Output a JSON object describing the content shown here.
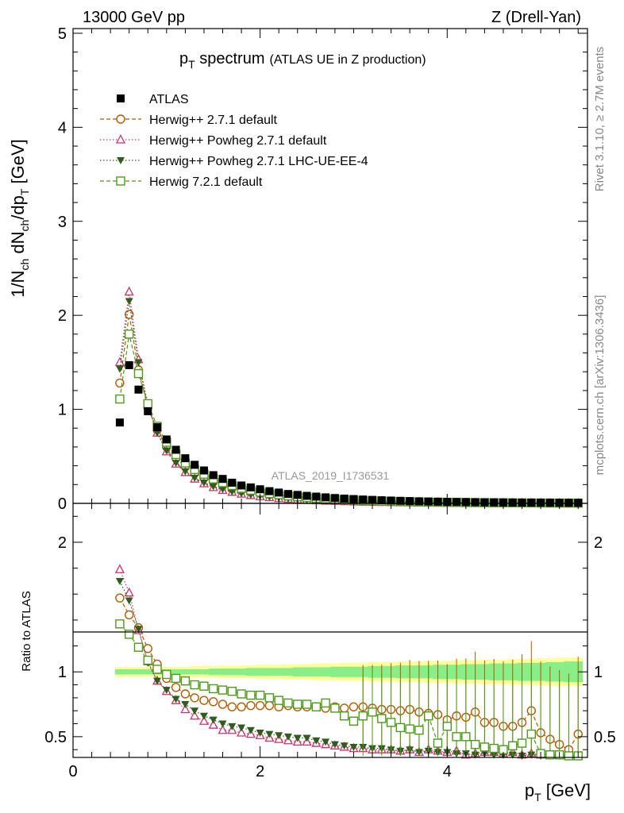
{
  "header": {
    "left": "13000 GeV pp",
    "right": "Z (Drell-Yan)"
  },
  "title": {
    "main": "p",
    "main_sub": "T",
    "main_rest": " spectrum",
    "detail": "(ATLAS UE in Z production)"
  },
  "side_labels": {
    "rivet": "Rivet 3.1.10, ≥ 2.7M events",
    "mcplots": "mcplots.cern.ch [arXiv:1306.3436]"
  },
  "analysis_id": "ATLAS_2019_I1736531",
  "colors": {
    "atlas": "#000000",
    "herwig_pp_default": "#b35900",
    "herwig_pp_powheg": "#cc3366",
    "herwig_pp_powheg_lhc": "#2e5d1e",
    "herwig7_default": "#4c9a1a",
    "band_outer": "#ffff99",
    "band_inner": "#88ee88"
  },
  "chart_data": [
    {
      "type": "scatter",
      "panel": "main",
      "ylabel": "1/N_ch dN_ch/dp_T [GeV]",
      "ylabel_parts": {
        "a": "1/N",
        "a_sub": "ch",
        "b": " dN",
        "b_sub": "ch",
        "c": "/dp",
        "c_sub": "T",
        "d": " [GeV]"
      },
      "xlim": [
        0,
        5.5
      ],
      "ylim": [
        0,
        5.05
      ],
      "y_ticks": [
        "0",
        "1",
        "2",
        "3",
        "4",
        "5"
      ],
      "legend_position": "top-left",
      "x": [
        0.5,
        0.6,
        0.7,
        0.8,
        0.9,
        1.0,
        1.1,
        1.2,
        1.3,
        1.4,
        1.5,
        1.6,
        1.7,
        1.8,
        1.9,
        2.0,
        2.1,
        2.2,
        2.3,
        2.4,
        2.5,
        2.6,
        2.7,
        2.8,
        2.9,
        3.0,
        3.1,
        3.2,
        3.3,
        3.4,
        3.5,
        3.6,
        3.7,
        3.8,
        3.9,
        4.0,
        4.1,
        4.2,
        4.3,
        4.4,
        4.5,
        4.6,
        4.7,
        4.8,
        4.9,
        5.0,
        5.1,
        5.2,
        5.3,
        5.4
      ],
      "series": [
        {
          "name": "ATLAS",
          "marker": "filled-square",
          "values": [
            0.86,
            1.47,
            1.21,
            0.98,
            0.81,
            0.68,
            0.57,
            0.48,
            0.41,
            0.35,
            0.3,
            0.26,
            0.22,
            0.19,
            0.17,
            0.15,
            0.13,
            0.115,
            0.1,
            0.09,
            0.08,
            0.072,
            0.064,
            0.057,
            0.051,
            0.046,
            0.041,
            0.037,
            0.033,
            0.03,
            0.027,
            0.024,
            0.022,
            0.02,
            0.018,
            0.016,
            0.015,
            0.014,
            0.013,
            0.012,
            0.011,
            0.01,
            0.009,
            0.0085,
            0.008,
            0.0075,
            0.007,
            0.0065,
            0.006,
            0.0055
          ]
        },
        {
          "name": "Herwig++ 2.7.1 default",
          "marker": "open-circle",
          "line": "dashed",
          "values": [
            1.28,
            2.01,
            1.42,
            1.02,
            0.78,
            0.6,
            0.48,
            0.39,
            0.32,
            0.27,
            0.23,
            0.19,
            0.16,
            0.14,
            0.12,
            0.11,
            0.1,
            0.088,
            0.078,
            0.07,
            0.062,
            0.055,
            0.049,
            0.044,
            0.04,
            0.036,
            0.032,
            0.029,
            0.026,
            0.023,
            0.021,
            0.019,
            0.017,
            0.015,
            0.014,
            0.012,
            0.011,
            0.01,
            0.009,
            0.008,
            0.007,
            0.0065,
            0.006,
            0.0055,
            0.005,
            0.0045,
            0.004,
            0.0035,
            0.003,
            0.003
          ]
        },
        {
          "name": "Herwig++ Powheg 2.7.1 default",
          "marker": "open-triangle",
          "line": "dotted",
          "values": [
            1.5,
            2.25,
            1.53,
            1.05,
            0.75,
            0.55,
            0.42,
            0.33,
            0.26,
            0.21,
            0.17,
            0.14,
            0.12,
            0.1,
            0.085,
            0.072,
            0.062,
            0.053,
            0.046,
            0.04,
            0.034,
            0.03,
            0.026,
            0.023,
            0.02,
            0.017,
            0.015,
            0.013,
            0.012,
            0.01,
            0.009,
            0.008,
            0.007,
            0.006,
            0.005,
            0.0045,
            0.004,
            0.0035,
            0.003,
            0.003,
            0.0025,
            0.002,
            0.002,
            0.002,
            0.0015,
            0.0015,
            0.0015,
            0.001,
            0.001,
            0.001
          ]
        },
        {
          "name": "Herwig++ Powheg 2.7.1 LHC-UE-EE-4",
          "marker": "filled-triangle-down",
          "line": "dotted",
          "values": [
            1.43,
            2.15,
            1.5,
            1.04,
            0.75,
            0.56,
            0.43,
            0.34,
            0.27,
            0.22,
            0.18,
            0.15,
            0.125,
            0.105,
            0.09,
            0.077,
            0.066,
            0.057,
            0.049,
            0.042,
            0.036,
            0.032,
            0.028,
            0.024,
            0.021,
            0.018,
            0.016,
            0.014,
            0.012,
            0.011,
            0.01,
            0.009,
            0.008,
            0.007,
            0.006,
            0.005,
            0.0045,
            0.004,
            0.0035,
            0.003,
            0.003,
            0.0025,
            0.002,
            0.002,
            0.002,
            0.0015,
            0.0015,
            0.0015,
            0.001,
            0.001
          ]
        },
        {
          "name": "Herwig 7.2.1 default",
          "marker": "open-square",
          "line": "dashed",
          "values": [
            1.11,
            1.8,
            1.38,
            1.06,
            0.82,
            0.65,
            0.52,
            0.43,
            0.36,
            0.31,
            0.26,
            0.22,
            0.19,
            0.16,
            0.14,
            0.12,
            0.105,
            0.092,
            0.08,
            0.07,
            0.062,
            0.055,
            0.048,
            0.043,
            0.038,
            0.034,
            0.03,
            0.027,
            0.024,
            0.021,
            0.019,
            0.017,
            0.015,
            0.013,
            0.012,
            0.011,
            0.01,
            0.009,
            0.008,
            0.007,
            0.0065,
            0.006,
            0.0055,
            0.005,
            0.0045,
            0.004,
            0.0035,
            0.003,
            0.003,
            0.0025
          ]
        }
      ]
    },
    {
      "type": "scatter",
      "panel": "ratio",
      "xlabel": "p_T [GeV]",
      "xlabel_parts": {
        "a": "p",
        "a_sub": "T",
        "b": " [GeV]"
      },
      "ylabel": "Ratio to ATLAS",
      "xlim": [
        0,
        5.5
      ],
      "ylim": [
        0.34,
        2.3
      ],
      "x_ticks": [
        "0",
        "2",
        "4"
      ],
      "y_ticks": [
        "0.5",
        "1",
        "2"
      ],
      "x": [
        0.5,
        0.6,
        0.7,
        0.8,
        0.9,
        1.0,
        1.1,
        1.2,
        1.3,
        1.4,
        1.5,
        1.6,
        1.7,
        1.8,
        1.9,
        2.0,
        2.1,
        2.2,
        2.3,
        2.4,
        2.5,
        2.6,
        2.7,
        2.8,
        2.9,
        3.0,
        3.1,
        3.2,
        3.3,
        3.4,
        3.5,
        3.6,
        3.7,
        3.8,
        3.9,
        4.0,
        4.1,
        4.2,
        4.3,
        4.4,
        4.5,
        4.6,
        4.7,
        4.8,
        4.9,
        5.0,
        5.1,
        5.2,
        5.3,
        5.4
      ],
      "band_inner_halfwidth": [
        0.02,
        0.02,
        0.02,
        0.02,
        0.02,
        0.02,
        0.02,
        0.02,
        0.02,
        0.02,
        0.025,
        0.025,
        0.025,
        0.025,
        0.03,
        0.03,
        0.03,
        0.03,
        0.03,
        0.035,
        0.035,
        0.035,
        0.035,
        0.04,
        0.04,
        0.04,
        0.04,
        0.045,
        0.045,
        0.045,
        0.05,
        0.05,
        0.05,
        0.05,
        0.055,
        0.055,
        0.055,
        0.06,
        0.06,
        0.06,
        0.065,
        0.065,
        0.065,
        0.07,
        0.07,
        0.07,
        0.075,
        0.075,
        0.08,
        0.08
      ],
      "band_outer_halfwidth": [
        0.04,
        0.04,
        0.04,
        0.04,
        0.04,
        0.04,
        0.04,
        0.04,
        0.045,
        0.045,
        0.045,
        0.05,
        0.05,
        0.05,
        0.05,
        0.055,
        0.055,
        0.055,
        0.06,
        0.06,
        0.06,
        0.065,
        0.065,
        0.065,
        0.07,
        0.07,
        0.07,
        0.075,
        0.075,
        0.075,
        0.08,
        0.08,
        0.08,
        0.085,
        0.085,
        0.085,
        0.09,
        0.09,
        0.09,
        0.095,
        0.095,
        0.095,
        0.1,
        0.1,
        0.1,
        0.105,
        0.105,
        0.11,
        0.11,
        0.11
      ],
      "series": [
        {
          "name": "Herwig++ 2.7.1 default",
          "values": [
            1.57,
            1.44,
            1.34,
            1.18,
            1.06,
            0.95,
            0.88,
            0.83,
            0.8,
            0.78,
            0.77,
            0.75,
            0.73,
            0.73,
            0.74,
            0.74,
            0.74,
            0.73,
            0.74,
            0.73,
            0.73,
            0.73,
            0.72,
            0.73,
            0.72,
            0.73,
            0.73,
            0.72,
            0.71,
            0.71,
            0.7,
            0.71,
            0.69,
            0.68,
            0.67,
            0.63,
            0.66,
            0.65,
            0.69,
            0.61,
            0.61,
            0.58,
            0.58,
            0.61,
            0.7,
            0.53,
            0.48,
            0.44,
            0.4,
            0.52
          ]
        },
        {
          "name": "Herwig++ Powheg 2.7.1 default",
          "values": [
            1.79,
            1.61,
            1.32,
            1.08,
            0.93,
            0.85,
            0.78,
            0.71,
            0.66,
            0.62,
            0.59,
            0.55,
            0.55,
            0.53,
            0.52,
            0.51,
            0.49,
            0.48,
            0.47,
            0.46,
            0.46,
            0.45,
            0.44,
            0.43,
            0.42,
            0.41,
            0.41,
            0.4,
            0.4,
            0.4,
            0.39,
            0.4,
            0.38,
            0.4,
            0.39,
            0.38,
            0.39,
            0.36,
            0.37,
            0.38,
            0.38,
            0.37,
            0.38,
            0.36,
            0.37,
            0.36,
            0.36,
            0.36,
            0.35,
            0.35
          ]
        },
        {
          "name": "Herwig++ Powheg 2.7.1 LHC-UE-EE-4",
          "values": [
            1.7,
            1.55,
            1.33,
            1.07,
            0.93,
            0.86,
            0.79,
            0.75,
            0.7,
            0.66,
            0.63,
            0.6,
            0.58,
            0.57,
            0.55,
            0.53,
            0.52,
            0.51,
            0.5,
            0.49,
            0.49,
            0.47,
            0.46,
            0.44,
            0.43,
            0.42,
            0.42,
            0.41,
            0.41,
            0.4,
            0.39,
            0.4,
            0.38,
            0.39,
            0.38,
            0.38,
            0.37,
            0.37,
            0.36,
            0.37,
            0.36,
            0.36,
            0.36,
            0.35,
            0.36,
            0.35,
            0.35,
            0.35,
            0.34,
            0.35
          ]
        },
        {
          "name": "Herwig 7.2.1 default",
          "values": [
            1.37,
            1.29,
            1.19,
            1.09,
            1.02,
            0.98,
            0.95,
            0.93,
            0.9,
            0.89,
            0.87,
            0.86,
            0.85,
            0.83,
            0.82,
            0.82,
            0.8,
            0.78,
            0.76,
            0.75,
            0.75,
            0.73,
            0.76,
            0.72,
            0.66,
            0.62,
            0.66,
            0.69,
            0.64,
            0.61,
            0.57,
            0.56,
            0.55,
            0.66,
            0.45,
            0.58,
            0.5,
            0.5,
            0.44,
            0.42,
            0.41,
            0.4,
            0.43,
            0.45,
            0.52,
            0.37,
            0.36,
            0.36,
            0.35,
            0.35
          ]
        }
      ]
    }
  ]
}
